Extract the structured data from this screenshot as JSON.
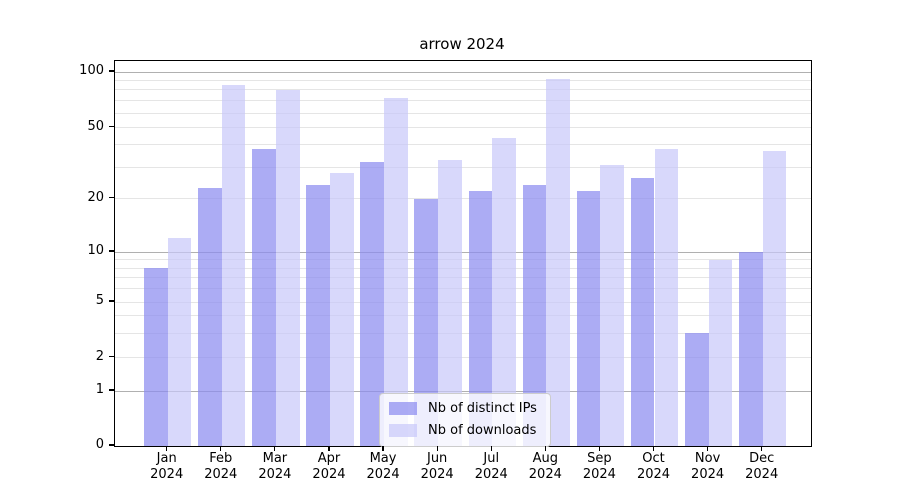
{
  "title": "arrow 2024",
  "chart_data": {
    "type": "bar",
    "title": "arrow 2024",
    "categories": [
      "Jan 2024",
      "Feb 2024",
      "Mar 2024",
      "Apr 2024",
      "May 2024",
      "Jun 2024",
      "Jul 2024",
      "Aug 2024",
      "Sep 2024",
      "Oct 2024",
      "Nov 2024",
      "Dec 2024"
    ],
    "x_tick_months": [
      "Jan",
      "Feb",
      "Mar",
      "Apr",
      "May",
      "Jun",
      "Jul",
      "Aug",
      "Sep",
      "Oct",
      "Nov",
      "Dec"
    ],
    "x_tick_year": "2024",
    "series": [
      {
        "name": "Nb of distinct IPs",
        "color": "#8c8cf0",
        "values": [
          8,
          23,
          38,
          24,
          32,
          20,
          22,
          24,
          22,
          26,
          3,
          10
        ]
      },
      {
        "name": "Nb of downloads",
        "color": "#c8c8fa",
        "values": [
          12,
          85,
          80,
          28,
          72,
          33,
          44,
          92,
          31,
          38,
          9,
          37
        ]
      }
    ],
    "y_axis": {
      "scale": "symlog",
      "ticks": [
        0,
        1,
        2,
        5,
        10,
        20,
        50,
        100
      ],
      "major_gridlines": [
        1,
        10,
        100
      ],
      "minor_gridlines": [
        2,
        3,
        4,
        5,
        6,
        7,
        8,
        9,
        20,
        30,
        40,
        50,
        60,
        70,
        80,
        90
      ],
      "range": [
        0,
        110
      ]
    },
    "legend_position": "lower center",
    "grid": true
  },
  "colors": {
    "bar_distinct_ips": "#8c8cf0",
    "bar_downloads": "#c8c8fa",
    "major_grid": "#b0b0b0",
    "minor_grid": "#e5e5e5",
    "axis": "#000000",
    "background": "#ffffff"
  }
}
